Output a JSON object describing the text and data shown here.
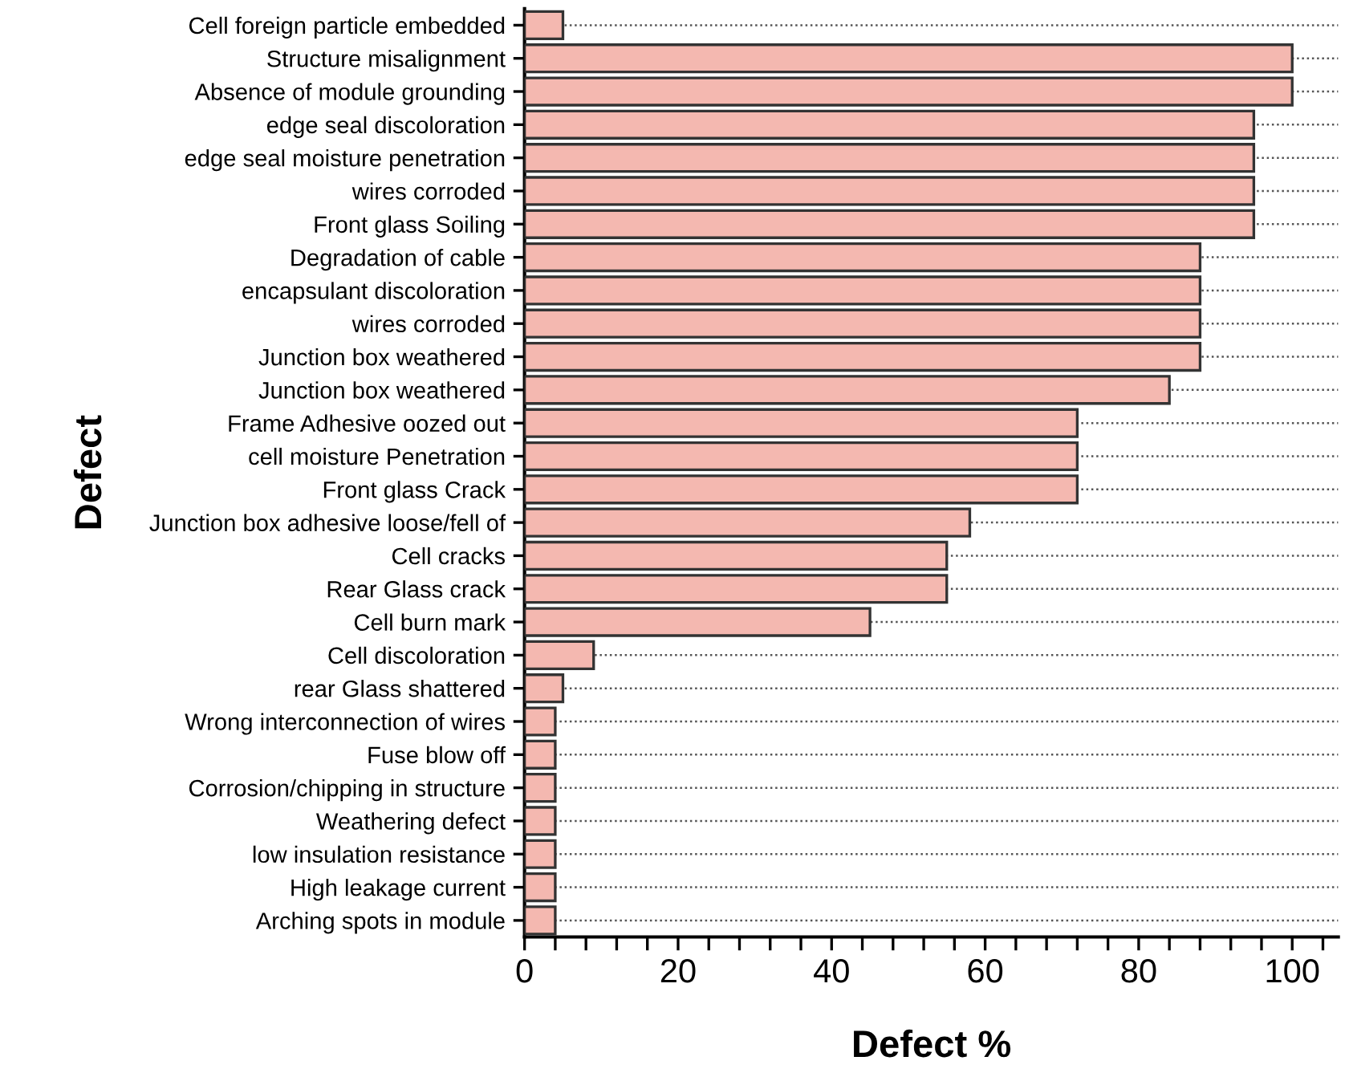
{
  "chart_data": {
    "type": "bar",
    "orientation": "horizontal",
    "xlabel": "Defect %",
    "ylabel": "Defect",
    "categories": [
      "Cell foreign particle embedded",
      "Structure misalignment",
      "Absence of module grounding",
      "edge seal discoloration",
      "edge seal moisture penetration",
      "wires corroded",
      "Front glass Soiling",
      "Degradation of cable",
      "encapsulant discoloration",
      "wires corroded",
      "Junction box weathered",
      "Junction box weathered",
      "Frame Adhesive oozed out",
      "cell moisture Penetration",
      "Front glass Crack",
      "Junction box adhesive loose/fell of",
      "Cell cracks",
      "Rear Glass crack",
      "Cell burn mark",
      "Cell discoloration",
      "rear Glass shattered",
      "Wrong interconnection of wires",
      "Fuse blow off",
      "Corrosion/chipping in structure",
      "Weathering defect",
      "low insulation resistance",
      "High leakage current",
      "Arching spots in module"
    ],
    "values": [
      5,
      100,
      100,
      95,
      95,
      95,
      95,
      88,
      88,
      88,
      88,
      84,
      72,
      72,
      72,
      58,
      55,
      55,
      45,
      9,
      5,
      4,
      4,
      4,
      4,
      4,
      4,
      4
    ],
    "color": "#f4b8b0",
    "xlim": [
      0,
      106
    ],
    "xticks": [
      0,
      {
        "value": 4,
        "label": null
      },
      {
        "value": 8,
        "label": null
      },
      {
        "value": 12,
        "label": null
      },
      {
        "value": 16,
        "label": null
      },
      20,
      {
        "value": 24,
        "label": null
      },
      {
        "value": 28,
        "label": null
      },
      {
        "value": 32,
        "label": null
      },
      {
        "value": 36,
        "label": null
      },
      40,
      {
        "value": 44,
        "label": null
      },
      {
        "value": 48,
        "label": null
      },
      {
        "value": 52,
        "label": null
      },
      {
        "value": 56,
        "label": null
      },
      60,
      {
        "value": 64,
        "label": null
      },
      {
        "value": 68,
        "label": null
      },
      {
        "value": 72,
        "label": null
      },
      {
        "value": 76,
        "label": null
      },
      80,
      {
        "value": 84,
        "label": null
      },
      {
        "value": 88,
        "label": null
      },
      {
        "value": 92,
        "label": null
      },
      {
        "value": 96,
        "label": null
      },
      100,
      {
        "value": 104,
        "label": null
      }
    ],
    "grid": "y"
  }
}
